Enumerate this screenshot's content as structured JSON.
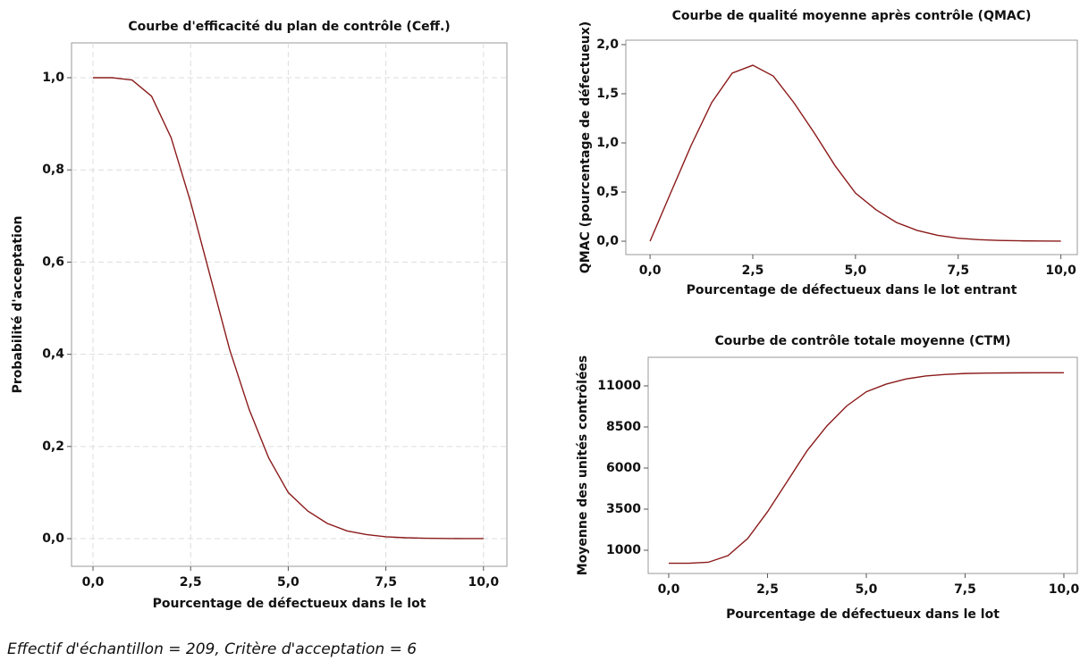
{
  "chart_data": [
    {
      "type": "line",
      "title": "Courbe d'efficacité du plan de contrôle (Ceff.)",
      "x_label": "Pourcentage de défectueux dans le lot",
      "y_label": "Probabilité d'acceptation",
      "x": [
        0,
        0.5,
        1,
        1.5,
        2,
        2.5,
        3,
        3.5,
        4,
        4.5,
        5,
        5.5,
        6,
        6.5,
        7,
        7.5,
        8,
        8.5,
        9,
        9.5,
        10
      ],
      "series": [
        {
          "name": "Ceff",
          "color": "#8b1a1a",
          "values": [
            1,
            1.0,
            0.995,
            0.96,
            0.87,
            0.73,
            0.57,
            0.41,
            0.28,
            0.175,
            0.1,
            0.06,
            0.033,
            0.017,
            0.009,
            0.004,
            0.002,
            0.001,
            0.0004,
            0.0002,
            0.0001
          ]
        }
      ],
      "xlim": [
        -0.55,
        10.6
      ],
      "ylim": [
        -0.06,
        1.0756
      ],
      "xticks": [
        {
          "value": 0,
          "label": "0,0"
        },
        {
          "value": 2.5,
          "label": "2,5"
        },
        {
          "value": 5,
          "label": "5,0"
        },
        {
          "value": 7.5,
          "label": "7,5"
        },
        {
          "value": 10,
          "label": "10,0"
        }
      ],
      "yticks": [
        {
          "value": 0,
          "label": "0,0"
        },
        {
          "value": 0.2,
          "label": "0,2"
        },
        {
          "value": 0.4,
          "label": "0,4"
        },
        {
          "value": 0.6,
          "label": "0,6"
        },
        {
          "value": 0.8,
          "label": "0,8"
        },
        {
          "value": 1,
          "label": "1,0"
        }
      ],
      "grid": true
    },
    {
      "type": "line",
      "title": "Courbe de qualité moyenne après contrôle (QMAC)",
      "x_label": "Pourcentage de défectueux dans le lot entrant",
      "y_label": "QMAC (pourcentage de défectueux)",
      "x": [
        0,
        0.5,
        1,
        1.5,
        2,
        2.5,
        3,
        3.5,
        4,
        4.5,
        5,
        5.5,
        6,
        6.5,
        7,
        7.5,
        8,
        8.5,
        9,
        9.5,
        10
      ],
      "series": [
        {
          "name": "QMAC",
          "color": "#8b1a1a",
          "values": [
            0,
            0.49,
            0.975,
            1.41,
            1.71,
            1.79,
            1.68,
            1.41,
            1.1,
            0.77,
            0.49,
            0.32,
            0.19,
            0.11,
            0.06,
            0.03,
            0.016,
            0.008,
            0.004,
            0.002,
            0.001
          ]
        }
      ],
      "xlim": [
        -0.59,
        10.4
      ],
      "ylim": [
        -0.136,
        2.045
      ],
      "xticks": [
        {
          "value": 0,
          "label": "0,0"
        },
        {
          "value": 2.5,
          "label": "2,5"
        },
        {
          "value": 5,
          "label": "5,0"
        },
        {
          "value": 7.5,
          "label": "7,5"
        },
        {
          "value": 10,
          "label": "10,0"
        }
      ],
      "yticks": [
        {
          "value": 0,
          "label": "0,0"
        },
        {
          "value": 0.5,
          "label": "0,5"
        },
        {
          "value": 1,
          "label": "1,0"
        },
        {
          "value": 1.5,
          "label": "1,5"
        },
        {
          "value": 2,
          "label": "2,0"
        }
      ],
      "grid": false
    },
    {
      "type": "line",
      "title": "Courbe de contrôle totale moyenne (CTM)",
      "x_label": "Pourcentage de défectueux dans le lot",
      "y_label": "Moyenne des unités contrôlées",
      "x": [
        0,
        0.5,
        1,
        1.5,
        2,
        2.5,
        3,
        3.5,
        4,
        4.5,
        5,
        5.5,
        6,
        6.5,
        7,
        7.5,
        8,
        8.5,
        9,
        9.5,
        10
      ],
      "series": [
        {
          "name": "CTM",
          "color": "#8b1a1a",
          "values": [
            209,
            209,
            267,
            673,
            1716,
            3339,
            5193,
            7048,
            8555,
            9771,
            10641,
            11105,
            11418,
            11603,
            11696,
            11754,
            11777,
            11788,
            11795,
            11798,
            11799
          ]
        }
      ],
      "xlim": [
        -0.52,
        10.34
      ],
      "ylim": [
        -413,
        12739
      ],
      "xticks": [
        {
          "value": 0,
          "label": "0,0"
        },
        {
          "value": 2.5,
          "label": "2,5"
        },
        {
          "value": 5,
          "label": "5,0"
        },
        {
          "value": 7.5,
          "label": "7,5"
        },
        {
          "value": 10,
          "label": "10,0"
        }
      ],
      "yticks": [
        1000,
        3500,
        6000,
        8500,
        11000
      ],
      "grid": false
    }
  ],
  "footnote": "Effectif d'échantillon = 209, Critère d'acceptation = 6"
}
